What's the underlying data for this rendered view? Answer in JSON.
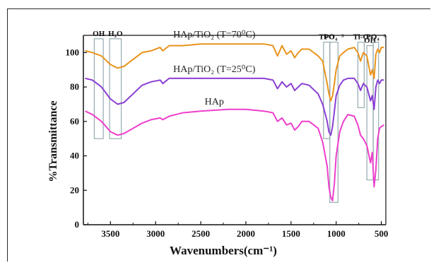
{
  "chart_data": {
    "type": "line",
    "xlabel": "Wavenumbers(cm⁻¹)",
    "ylabel": "%Transmittance",
    "xlim": [
      3800,
      450
    ],
    "ylim": [
      0,
      110
    ],
    "x_ticks": [
      3500,
      3000,
      2500,
      2000,
      1500,
      1000,
      500
    ],
    "y_ticks": [
      0,
      20,
      40,
      60,
      80,
      100
    ],
    "grid": false,
    "series": [
      {
        "name": "HAp/TiO₂ (T=70⁰C)",
        "color": "#e8941c",
        "x": [
          3780,
          3700,
          3600,
          3500,
          3420,
          3350,
          3250,
          3150,
          3050,
          2950,
          2920,
          2850,
          2700,
          2500,
          2200,
          2000,
          1800,
          1700,
          1650,
          1600,
          1550,
          1500,
          1460,
          1420,
          1380,
          1300,
          1200,
          1150,
          1100,
          1080,
          1060,
          1040,
          1020,
          1000,
          960,
          920,
          870,
          800,
          760,
          730,
          700,
          660,
          620,
          600,
          580,
          560,
          540,
          520,
          500,
          470
        ],
        "y": [
          101,
          100,
          98,
          93,
          91,
          92,
          96,
          100,
          101,
          103,
          101,
          104,
          104,
          105,
          105,
          105,
          105,
          104,
          98,
          104,
          99,
          101,
          97,
          100,
          102,
          102,
          98,
          95,
          82,
          76,
          72,
          75,
          82,
          90,
          98,
          100,
          102,
          103,
          100,
          95,
          100,
          98,
          87,
          90,
          85,
          99,
          102,
          100,
          103,
          103
        ]
      },
      {
        "name": "HAp/TiO₂ (T=25⁰C)",
        "color": "#8a3fd4",
        "x": [
          3780,
          3700,
          3600,
          3500,
          3420,
          3350,
          3250,
          3150,
          3050,
          2950,
          2920,
          2850,
          2700,
          2500,
          2200,
          2000,
          1800,
          1700,
          1650,
          1600,
          1550,
          1500,
          1460,
          1420,
          1380,
          1300,
          1200,
          1150,
          1100,
          1080,
          1060,
          1040,
          1020,
          1000,
          960,
          920,
          870,
          800,
          760,
          730,
          700,
          660,
          620,
          600,
          580,
          560,
          540,
          520,
          500,
          470
        ],
        "y": [
          85,
          84,
          80,
          73,
          70,
          71,
          76,
          81,
          83,
          84,
          82,
          85,
          85,
          85,
          85,
          85,
          85,
          84,
          79,
          83,
          80,
          82,
          78,
          80,
          82,
          81,
          76,
          70,
          60,
          54,
          52,
          57,
          66,
          75,
          81,
          84,
          85,
          85,
          82,
          78,
          82,
          80,
          72,
          75,
          67,
          80,
          84,
          82,
          84,
          84
        ]
      },
      {
        "name": "HAp",
        "color": "#ee3fcc",
        "x": [
          3780,
          3700,
          3600,
          3500,
          3420,
          3350,
          3250,
          3150,
          3050,
          2950,
          2920,
          2850,
          2700,
          2500,
          2200,
          2000,
          1800,
          1700,
          1650,
          1600,
          1550,
          1500,
          1460,
          1420,
          1380,
          1300,
          1200,
          1150,
          1100,
          1080,
          1060,
          1040,
          1020,
          1000,
          960,
          920,
          870,
          800,
          760,
          730,
          700,
          660,
          620,
          600,
          580,
          560,
          540,
          520,
          500,
          470
        ],
        "y": [
          66,
          64,
          60,
          54,
          52,
          53,
          56,
          59,
          61,
          62,
          61,
          63,
          65,
          66,
          67,
          67,
          66,
          65,
          60,
          62,
          58,
          59,
          55,
          57,
          60,
          60,
          56,
          48,
          34,
          22,
          16,
          14,
          24,
          40,
          54,
          60,
          64,
          63,
          58,
          52,
          50,
          46,
          36,
          42,
          22,
          32,
          50,
          56,
          57,
          58
        ]
      }
    ],
    "curve_labels": [
      {
        "text": "HAp/TiO₂ (T=70⁰C)",
        "series": 0
      },
      {
        "text": "HAp/TiO₂ (T=25⁰C)",
        "series": 1
      },
      {
        "text": "HAp",
        "series": 2
      }
    ],
    "annotations": [
      {
        "label": "OH",
        "x_range": [
          3680,
          3580
        ],
        "y_range": [
          50,
          108
        ]
      },
      {
        "label": "H₂O",
        "x_range": [
          3510,
          3380
        ],
        "y_range": [
          50,
          108
        ]
      },
      {
        "label": "Ti-O",
        "x_range": [
          1140,
          1070
        ],
        "y_range": [
          50,
          106
        ]
      },
      {
        "label": "PO₄⁻³",
        "x_range": [
          1070,
          980
        ],
        "y_range": [
          13,
          106
        ]
      },
      {
        "label": "Ti-O",
        "x_range": [
          760,
          690
        ],
        "y_range": [
          68,
          106
        ]
      },
      {
        "label": "OH",
        "x_range": [
          660,
          590
        ],
        "y_range": [
          26,
          104
        ]
      },
      {
        "label": "PO₄⁻³",
        "x_range": [
          590,
          530
        ],
        "y_range": [
          26,
          106
        ]
      }
    ]
  }
}
